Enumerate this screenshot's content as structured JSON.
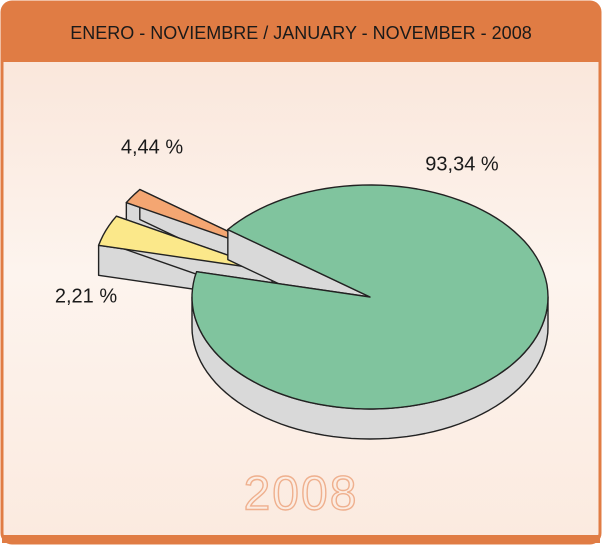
{
  "chart_data": {
    "type": "pie",
    "title": "ENERO - NOVIEMBRE / JANUARY - NOVEMBER - 2008",
    "watermark": "2008",
    "categories": [
      null,
      null,
      null
    ],
    "values": [
      93.34,
      4.44,
      2.21
    ],
    "value_labels": [
      "93,34 %",
      "4,44 %",
      "2,21 %"
    ],
    "colors": [
      "#80c49e",
      "#fbe88a",
      "#f4a672"
    ]
  }
}
